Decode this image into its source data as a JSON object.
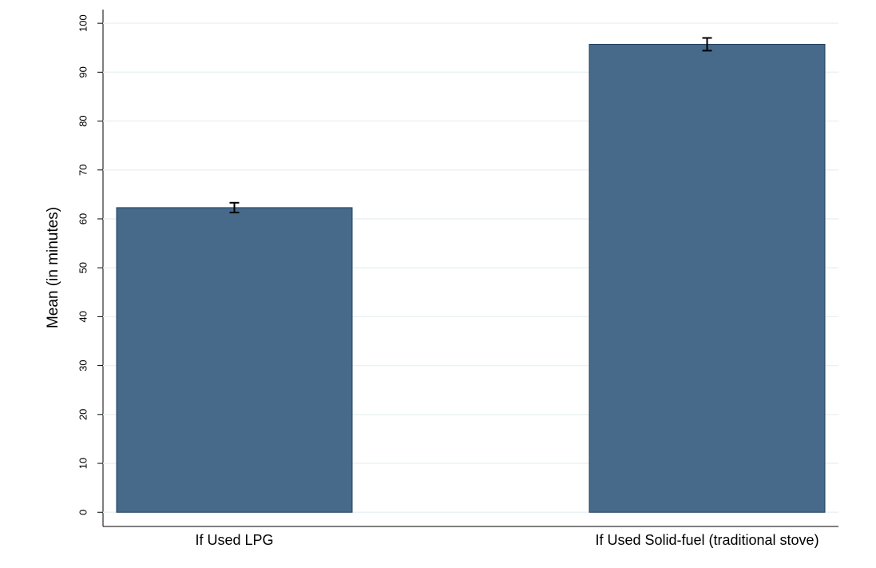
{
  "chart_data": {
    "type": "bar",
    "ylabel": "Mean (in minutes)",
    "categories": [
      "If Used LPG",
      "If Used Solid-fuel (traditional stove)"
    ],
    "values": [
      62.3,
      95.7
    ],
    "errors": [
      1.0,
      1.3
    ],
    "color": "#476a8b",
    "ylim": [
      -2.9,
      102.8
    ],
    "yticks": [
      0,
      10,
      20,
      30,
      40,
      50,
      60,
      70,
      80,
      90,
      100
    ],
    "grid": true
  }
}
